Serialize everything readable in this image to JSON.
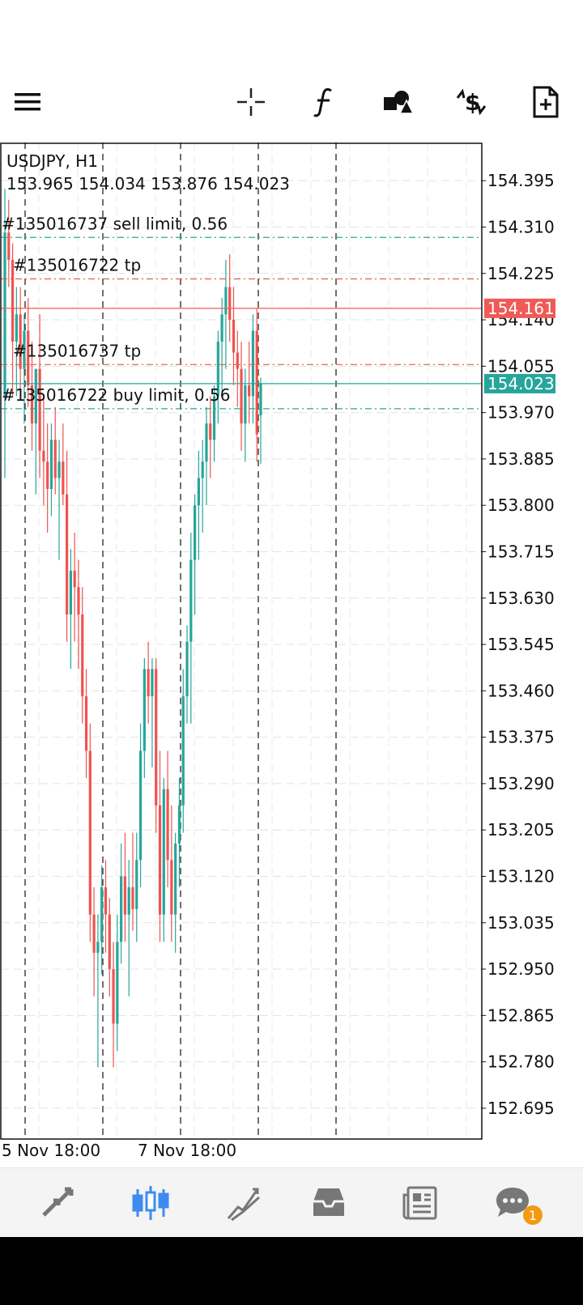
{
  "toolbar": {
    "items": [
      "menu-icon",
      "crosshair-icon",
      "function-icon",
      "shapes-icon",
      "trade-dollar-icon",
      "new-order-icon"
    ]
  },
  "chart_data": {
    "type": "candlestick",
    "symbol": "USDJPY, H1",
    "ohlc_header": "153.965 154.034 153.876 154.023",
    "ylim": [
      152.64,
      154.465
    ],
    "y_ticks": [
      "154.395",
      "154.310",
      "154.225",
      "154.140",
      "154.055",
      "153.970",
      "153.885",
      "153.800",
      "153.715",
      "153.630",
      "153.545",
      "153.460",
      "153.375",
      "153.290",
      "153.205",
      "153.120",
      "153.035",
      "152.950",
      "152.865",
      "152.780",
      "152.695"
    ],
    "x_tick_labels": [
      "5 Nov 18:00",
      "7 Nov 18:00"
    ],
    "order_lines": [
      {
        "label": "#135016737 sell limit, 0.56",
        "price": 154.291,
        "color": "#2aa79b"
      },
      {
        "label": "#135016722 tp",
        "price": 154.215,
        "color": "#e65a4f"
      },
      {
        "label": "#135016737 tp",
        "price": 154.058,
        "color": "#e65a4f"
      },
      {
        "label": "#135016722 buy limit, 0.56",
        "price": 153.977,
        "color": "#2aa79b"
      }
    ],
    "price_tags": [
      {
        "label": "154.161",
        "price": 154.161,
        "color": "#ef5a57"
      },
      {
        "label": "154.023",
        "price": 154.023,
        "color": "#26a69a"
      }
    ],
    "candles": [
      [
        154.0,
        154.38,
        153.85,
        154.3
      ],
      [
        154.3,
        154.36,
        154.2,
        154.25
      ],
      [
        154.25,
        154.28,
        154.0,
        154.1
      ],
      [
        154.1,
        154.2,
        154.0,
        154.15
      ],
      [
        154.15,
        154.2,
        154.0,
        154.05
      ],
      [
        154.05,
        154.15,
        153.95,
        154.12
      ],
      [
        154.12,
        154.18,
        153.98,
        154.02
      ],
      [
        154.02,
        154.1,
        153.9,
        153.95
      ],
      [
        153.95,
        154.05,
        153.82,
        154.05
      ],
      [
        154.05,
        154.15,
        153.85,
        153.9
      ],
      [
        153.9,
        154.0,
        153.8,
        153.88
      ],
      [
        153.88,
        153.95,
        153.75,
        153.83
      ],
      [
        153.83,
        153.95,
        153.78,
        153.92
      ],
      [
        153.92,
        153.98,
        153.82,
        153.85
      ],
      [
        153.85,
        153.92,
        153.7,
        153.88
      ],
      [
        153.88,
        153.95,
        153.8,
        153.82
      ],
      [
        153.82,
        153.9,
        153.55,
        153.6
      ],
      [
        153.6,
        153.72,
        153.5,
        153.68
      ],
      [
        153.68,
        153.75,
        153.55,
        153.65
      ],
      [
        153.65,
        153.7,
        153.5,
        153.6
      ],
      [
        153.6,
        153.65,
        153.4,
        153.45
      ],
      [
        153.45,
        153.5,
        153.3,
        153.35
      ],
      [
        153.35,
        153.4,
        153.0,
        153.05
      ],
      [
        153.05,
        153.1,
        152.9,
        152.98
      ],
      [
        152.98,
        153.05,
        152.77,
        153.0
      ],
      [
        153.0,
        153.14,
        152.94,
        153.1
      ],
      [
        153.1,
        153.15,
        152.98,
        153.05
      ],
      [
        153.05,
        153.08,
        152.9,
        152.95
      ],
      [
        152.95,
        153.0,
        152.77,
        152.85
      ],
      [
        152.85,
        153.05,
        152.8,
        153.0
      ],
      [
        153.0,
        153.18,
        152.96,
        153.12
      ],
      [
        153.12,
        153.2,
        153.0,
        153.05
      ],
      [
        153.05,
        153.15,
        152.9,
        153.1
      ],
      [
        153.1,
        153.2,
        153.02,
        153.06
      ],
      [
        153.06,
        153.2,
        153.0,
        153.15
      ],
      [
        153.15,
        153.4,
        153.1,
        153.35
      ],
      [
        153.35,
        153.52,
        153.3,
        153.5
      ],
      [
        153.5,
        153.55,
        153.4,
        153.45
      ],
      [
        153.45,
        153.52,
        153.32,
        153.5
      ],
      [
        153.5,
        153.52,
        153.2,
        153.25
      ],
      [
        153.25,
        153.35,
        153.0,
        153.05
      ],
      [
        153.05,
        153.3,
        153.0,
        153.28
      ],
      [
        153.28,
        153.35,
        153.1,
        153.15
      ],
      [
        153.15,
        153.25,
        153.0,
        153.05
      ],
      [
        153.05,
        153.2,
        152.98,
        153.18
      ],
      [
        153.18,
        153.3,
        153.1,
        153.25
      ],
      [
        153.25,
        153.5,
        153.2,
        153.45
      ],
      [
        153.45,
        153.58,
        153.4,
        153.55
      ],
      [
        153.55,
        153.75,
        153.4,
        153.7
      ],
      [
        153.7,
        153.82,
        153.6,
        153.8
      ],
      [
        153.8,
        153.9,
        153.7,
        153.85
      ],
      [
        153.85,
        153.92,
        153.75,
        153.88
      ],
      [
        153.88,
        153.98,
        153.8,
        153.95
      ],
      [
        153.95,
        154.0,
        153.85,
        153.92
      ],
      [
        153.92,
        154.02,
        153.88,
        154.0
      ],
      [
        154.0,
        154.12,
        153.95,
        154.1
      ],
      [
        154.1,
        154.18,
        154.0,
        154.15
      ],
      [
        154.15,
        154.25,
        154.05,
        154.2
      ],
      [
        154.2,
        154.26,
        154.1,
        154.14
      ],
      [
        154.14,
        154.2,
        154.02,
        154.08
      ],
      [
        154.08,
        154.12,
        153.98,
        154.05
      ],
      [
        154.05,
        154.1,
        153.9,
        153.95
      ],
      [
        153.95,
        154.05,
        153.88,
        154.02
      ],
      [
        154.02,
        154.1,
        153.95,
        154.0
      ],
      [
        154.0,
        154.15,
        153.95,
        154.12
      ],
      [
        154.12,
        154.16,
        153.88,
        153.93
      ],
      [
        153.965,
        154.034,
        153.876,
        154.023
      ]
    ]
  },
  "bottom_nav": {
    "items": [
      "quotes-icon",
      "chart-icon",
      "trade-icon",
      "history-icon",
      "news-icon",
      "messages-icon"
    ],
    "messages_badge": "1"
  }
}
